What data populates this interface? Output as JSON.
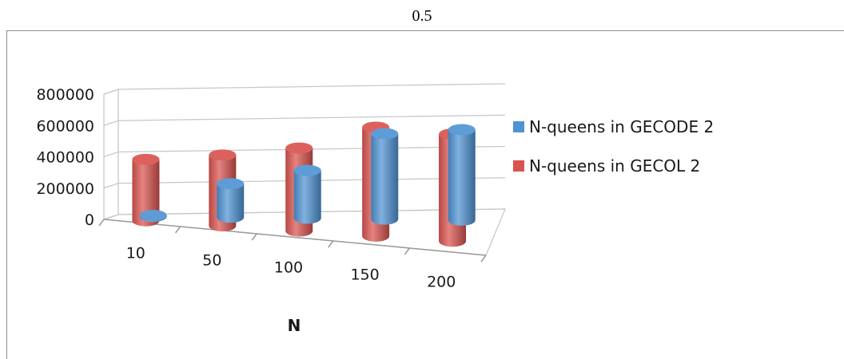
{
  "header": {
    "label": "0.5"
  },
  "chart_data": {
    "type": "bar",
    "style": "3d-cylinder",
    "categories": [
      "10",
      "50",
      "100",
      "150",
      "200"
    ],
    "series": [
      {
        "name": "N-queens in GECODE 2",
        "values": [
          5000,
          200000,
          285000,
          510000,
          540000
        ],
        "color": "#4f93d3"
      },
      {
        "name": "N-queens in GECOL 2",
        "values": [
          355000,
          410000,
          480000,
          630000,
          620000
        ],
        "color": "#d9534f"
      }
    ],
    "y_ticks": [
      "0",
      "200000",
      "400000",
      "600000",
      "800000"
    ],
    "ylim": [
      0,
      800000
    ],
    "xlabel": "N",
    "ylabel": "",
    "grid": true,
    "legend": "right"
  }
}
